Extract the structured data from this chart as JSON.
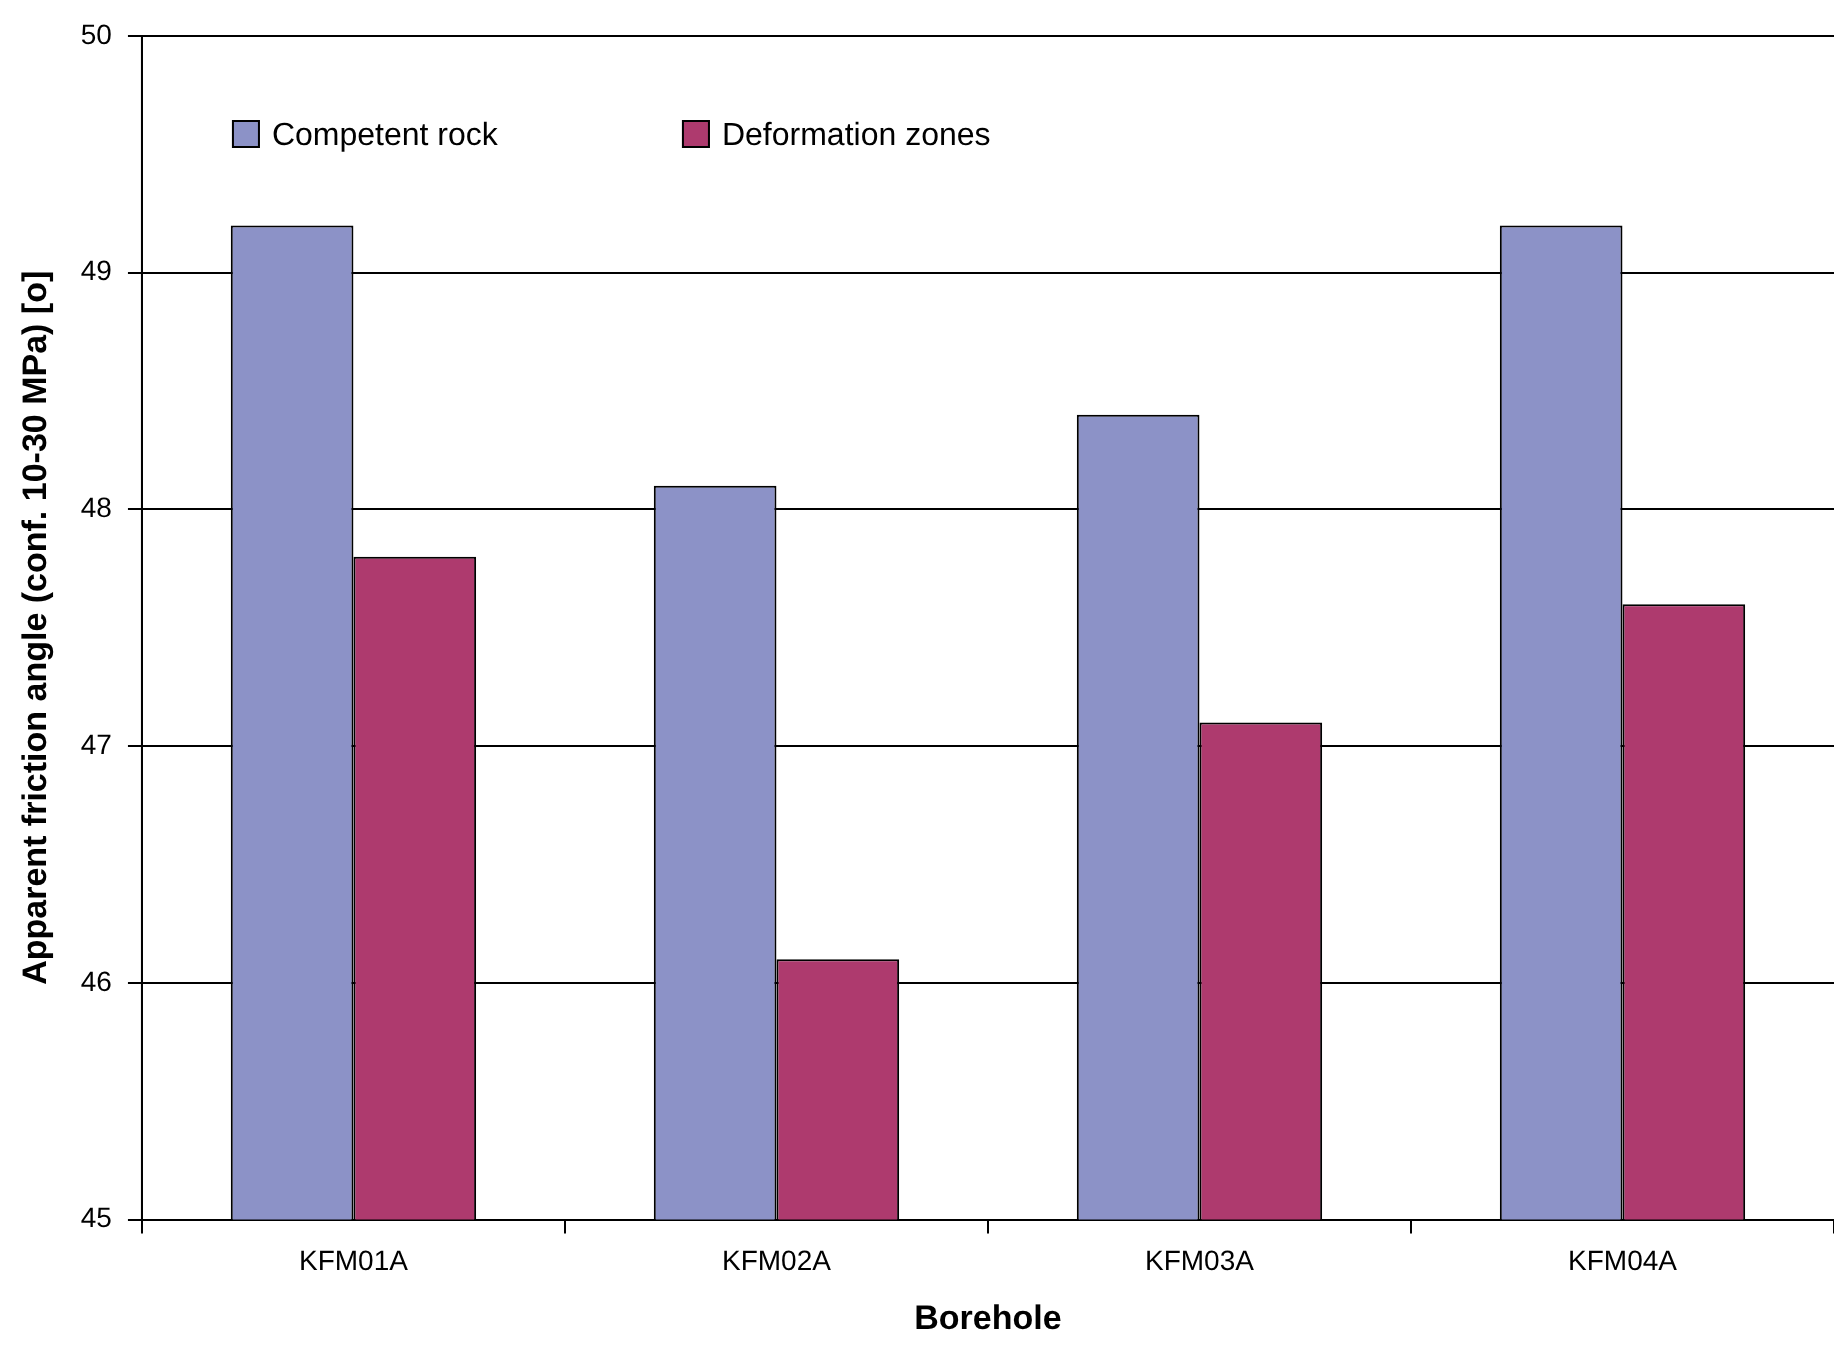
{
  "chart_data": {
    "type": "bar",
    "xlabel": "Borehole",
    "ylabel": "Apparent friction angle (conf. 10-30 MPa) [o]",
    "categories": [
      "KFM01A",
      "KFM02A",
      "KFM03A",
      "KFM04A"
    ],
    "series": [
      {
        "name": "Competent rock",
        "color": "#8c92c7",
        "values": [
          49.2,
          48.1,
          48.4,
          49.2
        ]
      },
      {
        "name": "Deformation zones",
        "color": "#ae3a6e",
        "values": [
          47.8,
          46.1,
          47.1,
          47.6
        ]
      }
    ],
    "ylim": [
      45,
      50
    ],
    "yticks": [
      45,
      46,
      47,
      48,
      49,
      50
    ],
    "grid": "y",
    "legend": "top left"
  }
}
